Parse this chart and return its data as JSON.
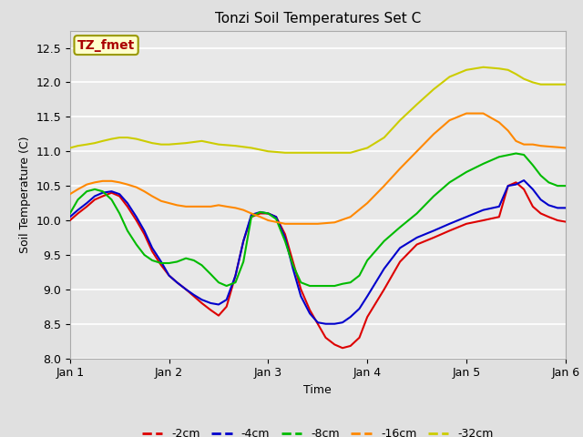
{
  "title": "Tonzi Soil Temperatures Set C",
  "xlabel": "Time",
  "ylabel": "Soil Temperature (C)",
  "annotation": "TZ_fmet",
  "annotation_color": "#aa0000",
  "annotation_bg": "#ffffcc",
  "annotation_edge": "#999900",
  "xlim": [
    0,
    5
  ],
  "ylim": [
    8.0,
    12.75
  ],
  "yticks": [
    8.0,
    8.5,
    9.0,
    9.5,
    10.0,
    10.5,
    11.0,
    11.5,
    12.0,
    12.5
  ],
  "xtick_positions": [
    0,
    1,
    2,
    3,
    4,
    5
  ],
  "xtick_labels": [
    "Jan 1",
    "Jan 2",
    "Jan 3",
    "Jan 4",
    "Jan 5",
    "Jan 6"
  ],
  "colors": {
    "-2cm": "#dd0000",
    "-4cm": "#0000cc",
    "-8cm": "#00bb00",
    "-16cm": "#ff8800",
    "-32cm": "#cccc00"
  },
  "lw": 1.5,
  "fig_bg": "#e0e0e0",
  "plot_bg": "#e8e8e8",
  "grid_color": "#ffffff",
  "x_2cm": [
    0,
    0.08,
    0.17,
    0.25,
    0.33,
    0.42,
    0.5,
    0.58,
    0.67,
    0.75,
    0.83,
    0.92,
    1.0,
    1.08,
    1.17,
    1.25,
    1.33,
    1.42,
    1.5,
    1.58,
    1.67,
    1.75,
    1.83,
    1.92,
    2.0,
    2.08,
    2.17,
    2.25,
    2.33,
    2.42,
    2.5,
    2.58,
    2.67,
    2.75,
    2.83,
    2.92,
    3.0,
    3.17,
    3.33,
    3.5,
    3.67,
    3.83,
    4.0,
    4.17,
    4.33,
    4.42,
    4.5,
    4.58,
    4.67,
    4.75,
    4.83,
    4.92,
    5.0
  ],
  "y_2cm": [
    10.0,
    10.1,
    10.2,
    10.3,
    10.35,
    10.4,
    10.35,
    10.2,
    10.0,
    9.8,
    9.55,
    9.35,
    9.2,
    9.1,
    9.0,
    8.9,
    8.8,
    8.7,
    8.62,
    8.75,
    9.2,
    9.7,
    10.05,
    10.1,
    10.1,
    10.05,
    9.8,
    9.4,
    9.0,
    8.7,
    8.5,
    8.3,
    8.2,
    8.15,
    8.18,
    8.3,
    8.6,
    9.0,
    9.4,
    9.65,
    9.75,
    9.85,
    9.95,
    10.0,
    10.05,
    10.5,
    10.55,
    10.45,
    10.2,
    10.1,
    10.05,
    10.0,
    9.98
  ],
  "x_4cm": [
    0,
    0.08,
    0.17,
    0.25,
    0.33,
    0.42,
    0.5,
    0.58,
    0.67,
    0.75,
    0.83,
    0.92,
    1.0,
    1.08,
    1.17,
    1.25,
    1.33,
    1.42,
    1.5,
    1.58,
    1.67,
    1.75,
    1.83,
    1.92,
    2.0,
    2.08,
    2.17,
    2.25,
    2.33,
    2.42,
    2.5,
    2.58,
    2.67,
    2.75,
    2.83,
    2.92,
    3.0,
    3.17,
    3.33,
    3.5,
    3.67,
    3.83,
    4.0,
    4.17,
    4.33,
    4.42,
    4.5,
    4.58,
    4.67,
    4.75,
    4.83,
    4.92,
    5.0
  ],
  "y_4cm": [
    10.05,
    10.15,
    10.25,
    10.35,
    10.4,
    10.42,
    10.38,
    10.25,
    10.05,
    9.85,
    9.6,
    9.4,
    9.2,
    9.1,
    9.0,
    8.92,
    8.85,
    8.8,
    8.78,
    8.85,
    9.2,
    9.7,
    10.08,
    10.12,
    10.1,
    10.05,
    9.75,
    9.3,
    8.9,
    8.65,
    8.52,
    8.5,
    8.5,
    8.52,
    8.6,
    8.72,
    8.9,
    9.3,
    9.6,
    9.75,
    9.85,
    9.95,
    10.05,
    10.15,
    10.2,
    10.5,
    10.52,
    10.58,
    10.45,
    10.3,
    10.22,
    10.18,
    10.18
  ],
  "x_8cm": [
    0,
    0.08,
    0.17,
    0.25,
    0.33,
    0.42,
    0.5,
    0.58,
    0.67,
    0.75,
    0.83,
    0.92,
    1.0,
    1.08,
    1.17,
    1.25,
    1.33,
    1.42,
    1.5,
    1.58,
    1.67,
    1.75,
    1.83,
    1.92,
    2.0,
    2.08,
    2.17,
    2.25,
    2.33,
    2.42,
    2.5,
    2.58,
    2.67,
    2.75,
    2.83,
    2.92,
    3.0,
    3.17,
    3.33,
    3.5,
    3.67,
    3.83,
    4.0,
    4.17,
    4.33,
    4.5,
    4.58,
    4.67,
    4.75,
    4.83,
    4.92,
    5.0
  ],
  "y_8cm": [
    10.1,
    10.3,
    10.42,
    10.45,
    10.42,
    10.3,
    10.1,
    9.85,
    9.65,
    9.5,
    9.42,
    9.38,
    9.38,
    9.4,
    9.45,
    9.42,
    9.35,
    9.22,
    9.1,
    9.05,
    9.1,
    9.4,
    10.05,
    10.12,
    10.1,
    10.02,
    9.7,
    9.35,
    9.1,
    9.05,
    9.05,
    9.05,
    9.05,
    9.08,
    9.1,
    9.2,
    9.42,
    9.7,
    9.9,
    10.1,
    10.35,
    10.55,
    10.7,
    10.82,
    10.92,
    10.97,
    10.95,
    10.8,
    10.65,
    10.55,
    10.5,
    10.5
  ],
  "x_16cm": [
    0,
    0.08,
    0.17,
    0.25,
    0.33,
    0.42,
    0.5,
    0.58,
    0.67,
    0.75,
    0.83,
    0.92,
    1.0,
    1.08,
    1.17,
    1.25,
    1.33,
    1.42,
    1.5,
    1.58,
    1.67,
    1.75,
    1.83,
    1.92,
    2.0,
    2.17,
    2.33,
    2.5,
    2.67,
    2.83,
    3.0,
    3.17,
    3.33,
    3.5,
    3.67,
    3.83,
    4.0,
    4.17,
    4.33,
    4.42,
    4.5,
    4.58,
    4.67,
    4.75,
    4.83,
    4.92,
    5.0
  ],
  "y_16cm": [
    10.38,
    10.45,
    10.52,
    10.55,
    10.57,
    10.57,
    10.55,
    10.52,
    10.48,
    10.42,
    10.35,
    10.28,
    10.25,
    10.22,
    10.2,
    10.2,
    10.2,
    10.2,
    10.22,
    10.2,
    10.18,
    10.15,
    10.1,
    10.05,
    10.0,
    9.95,
    9.95,
    9.95,
    9.97,
    10.05,
    10.25,
    10.5,
    10.75,
    11.0,
    11.25,
    11.45,
    11.55,
    11.55,
    11.42,
    11.3,
    11.15,
    11.1,
    11.1,
    11.08,
    11.07,
    11.06,
    11.05
  ],
  "x_32cm": [
    0,
    0.08,
    0.17,
    0.25,
    0.33,
    0.42,
    0.5,
    0.58,
    0.67,
    0.75,
    0.83,
    0.92,
    1.0,
    1.17,
    1.33,
    1.5,
    1.67,
    1.83,
    2.0,
    2.17,
    2.33,
    2.5,
    2.67,
    2.83,
    3.0,
    3.17,
    3.33,
    3.5,
    3.67,
    3.83,
    4.0,
    4.17,
    4.33,
    4.42,
    4.5,
    4.58,
    4.67,
    4.75,
    4.83,
    4.92,
    5.0
  ],
  "y_32cm": [
    11.05,
    11.08,
    11.1,
    11.12,
    11.15,
    11.18,
    11.2,
    11.2,
    11.18,
    11.15,
    11.12,
    11.1,
    11.1,
    11.12,
    11.15,
    11.1,
    11.08,
    11.05,
    11.0,
    10.98,
    10.98,
    10.98,
    10.98,
    10.98,
    11.05,
    11.2,
    11.45,
    11.68,
    11.9,
    12.08,
    12.18,
    12.22,
    12.2,
    12.18,
    12.12,
    12.05,
    12.0,
    11.97,
    11.97,
    11.97,
    11.97
  ]
}
